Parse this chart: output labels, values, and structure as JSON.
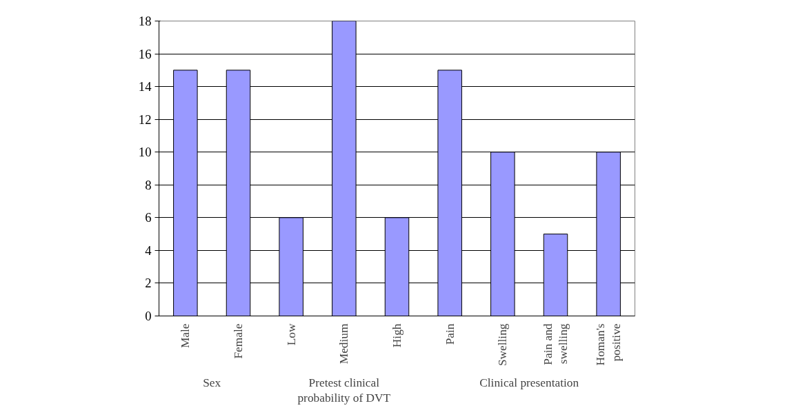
{
  "chart_data": {
    "type": "bar",
    "categories": [
      "Male",
      "Female",
      "Low",
      "Medium",
      "High",
      "Pain",
      "Swelling",
      "Pain and swelling",
      "Homan's positive"
    ],
    "values": [
      15,
      15,
      6,
      18,
      6,
      15,
      10,
      5,
      10
    ],
    "color": "#9999ff",
    "ylim": [
      0,
      18
    ],
    "yticks": [
      0,
      2,
      4,
      6,
      8,
      10,
      12,
      14,
      16,
      18
    ],
    "grid": "y",
    "annotations": [
      "Sex",
      "Pretest clinical probability of DVT",
      "Clinical presentation"
    ]
  }
}
